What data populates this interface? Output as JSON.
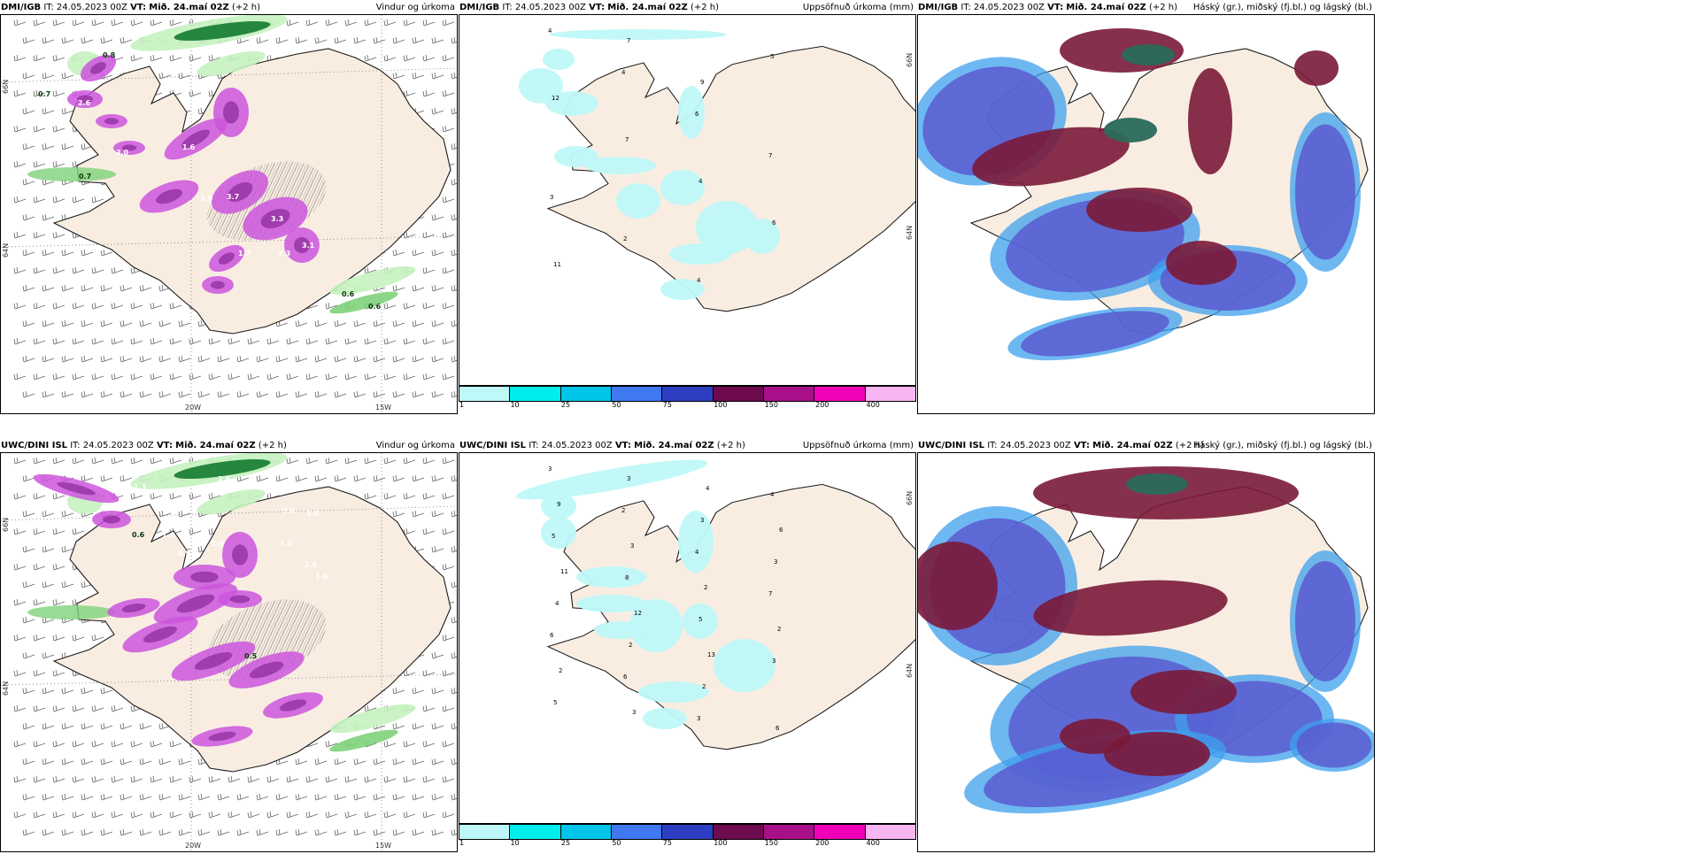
{
  "rows": [
    {
      "model": "DMI/IGB",
      "panels": [
        {
          "right_title": "Vindur og úrkoma"
        },
        {
          "right_title": "Uppsöfnuð úrkoma (mm)"
        },
        {
          "right_title": "Háský (gr.), miðský (fj.bl.) og lágský (bl.)"
        }
      ]
    },
    {
      "model": "UWC/DINI ISL",
      "panels": [
        {
          "right_title": "Vindur og úrkoma"
        },
        {
          "right_title": "Uppsöfnuð úrkoma (mm)"
        },
        {
          "right_title": "Háský (gr.), miðský (fj.bl.) og lágský (bl.)"
        }
      ]
    }
  ],
  "header": {
    "it_label": "IT:",
    "it_value": "24.05.2023 00Z",
    "vt_label": "VT:",
    "vt_value": "Mið. 24.maí 02Z",
    "offset": "(+2 h)"
  },
  "ticks": {
    "lon_20w": "20W",
    "lon_15w": "15W",
    "lat_66n": "66N",
    "lat_64n": "64N"
  },
  "colorbar": {
    "labels": [
      "1",
      "10",
      "25",
      "50",
      "75",
      "100",
      "150",
      "200",
      "400"
    ],
    "colors": [
      "#bff8f8",
      "#00eded",
      "#00c5ea",
      "#3f78f0",
      "#2d3fc0",
      "#6e0a4e",
      "#a8108a",
      "#f000b8",
      "#f7b5f2"
    ]
  },
  "precip_labels_top": [
    "4",
    "4",
    "6",
    "7",
    "3",
    "2",
    "4",
    "5",
    "12",
    "7",
    "4",
    "6",
    "11",
    "7",
    "9"
  ],
  "precip_labels_bottom": [
    "3",
    "2",
    "4",
    "7",
    "6",
    "6",
    "3",
    "4",
    "5",
    "8",
    "5",
    "3",
    "5",
    "3",
    "3",
    "3",
    "4",
    "2",
    "2",
    "6",
    "9",
    "3",
    "2",
    "2",
    "2",
    "3",
    "4",
    "6",
    "11",
    "12",
    "13"
  ],
  "wind_labels_top": [
    "0.8",
    "0.7",
    "2.6",
    "3.0",
    "1.6",
    "3.7",
    "3.0",
    "3.3",
    "1.7",
    "2.3",
    "3.1",
    "0.7",
    "0.6",
    "0.6"
  ],
  "wind_labels_bottom": [
    "0.3",
    "0.9",
    "1.8",
    "2.9",
    "3.2",
    "1.3",
    "2.6",
    "2.6",
    "3.0",
    "1.9",
    "3.0",
    "2.8",
    "1.6",
    "4.9",
    "1.4",
    "0.6",
    "0.5"
  ],
  "colors": {
    "land": "#f9ede2",
    "land_c": "#f2e3d5",
    "coast": "#1a1a1a",
    "grid": "#777777",
    "green_light": "#c5f2c0",
    "green_mid": "#7ed27a",
    "green_dark": "#137a2e",
    "magenta": "#cc55dd",
    "magenta_dark": "#8a2a9a",
    "cyan_light": "#bff8f8",
    "cloud_high": "#7a1a3a",
    "cloud_mid": "#5a5ad0",
    "cloud_low": "#3ea0ee",
    "cloud_teal": "#2a6a5a"
  }
}
